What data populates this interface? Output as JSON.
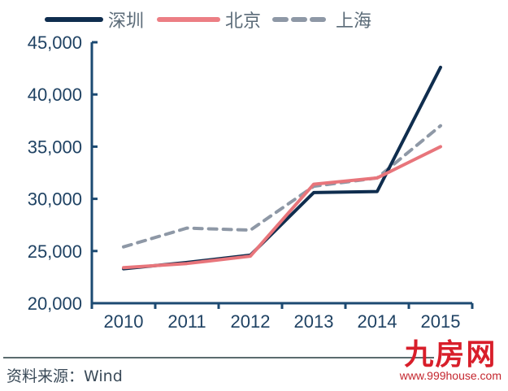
{
  "chart_data": {
    "type": "line",
    "title": "",
    "xlabel": "",
    "ylabel": "",
    "categories": [
      "2010",
      "2011",
      "2012",
      "2013",
      "2014",
      "2015"
    ],
    "series": [
      {
        "name": "深圳",
        "color": "#0f2d4e",
        "style": "solid",
        "values": [
          23300,
          23900,
          24600,
          30600,
          30700,
          42600
        ]
      },
      {
        "name": "北京",
        "color": "#e8757b",
        "style": "solid",
        "values": [
          23400,
          23800,
          24500,
          31400,
          32000,
          35000
        ]
      },
      {
        "name": "上海",
        "color": "#8e98a6",
        "style": "dashed",
        "values": [
          25400,
          27200,
          27000,
          31200,
          32000,
          37000
        ]
      }
    ],
    "ylim": [
      20000,
      45000
    ],
    "yticks": [
      "20,000",
      "25,000",
      "30,000",
      "35,000",
      "40,000",
      "45,000"
    ],
    "grid": false,
    "legend_position": "top",
    "axis_color": "#1c4a72"
  },
  "legend": {
    "items": [
      {
        "label": "深圳"
      },
      {
        "label": "北京"
      },
      {
        "label": "上海"
      }
    ]
  },
  "footer": {
    "source": "资料来源：Wind"
  },
  "watermark": {
    "title": "九房网",
    "url": "www.999house.com"
  }
}
